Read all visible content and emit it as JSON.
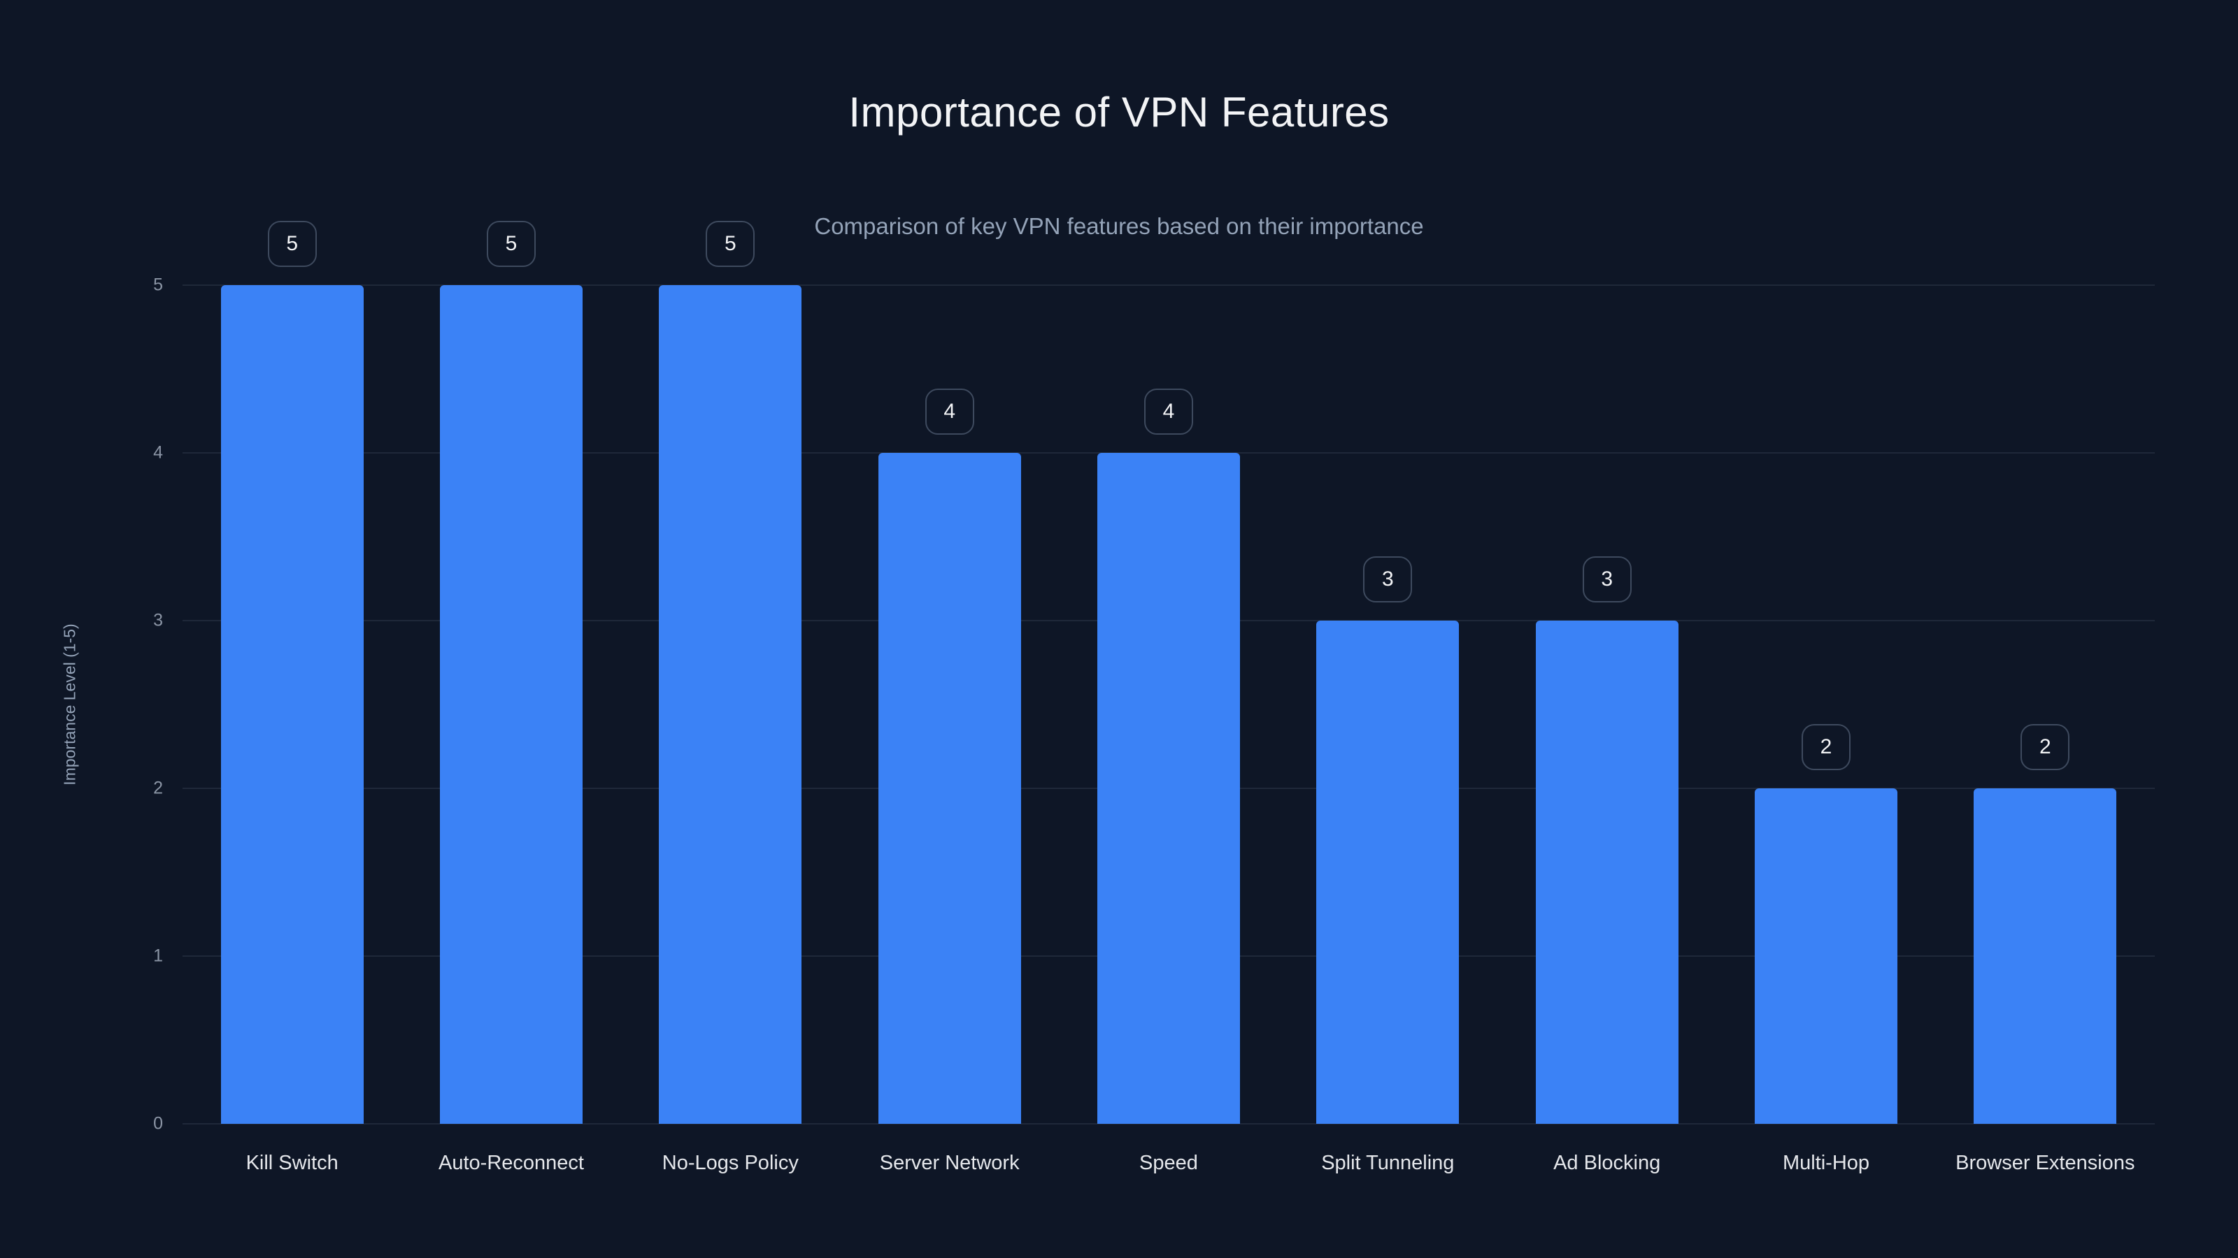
{
  "chart_data": {
    "type": "bar",
    "title": "Importance of VPN Features",
    "subtitle": "Comparison of key VPN features based on their importance",
    "categories": [
      "Kill Switch",
      "Auto-Reconnect",
      "No-Logs Policy",
      "Server Network",
      "Speed",
      "Split Tunneling",
      "Ad Blocking",
      "Multi-Hop",
      "Browser Extensions"
    ],
    "values": [
      5,
      5,
      5,
      4,
      4,
      3,
      3,
      2,
      2
    ],
    "xlabel": "",
    "ylabel": "Importance Level (1-5)",
    "ylim": [
      0,
      5
    ],
    "yticks": [
      0,
      1,
      2,
      3,
      4,
      5
    ],
    "grid": true,
    "legend_position": "none",
    "value_labels": true,
    "colors": {
      "bar": "#3b82f6",
      "background": "#0e1626",
      "gridline": "rgba(148,163,184,0.13)",
      "title_text": "#f3f4f6",
      "subtitle_text": "#94a3b8",
      "tick_text": "#8b95a5",
      "badge_border": "#3e4a5e"
    }
  }
}
